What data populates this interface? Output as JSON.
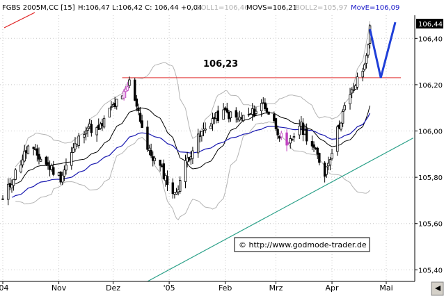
{
  "header": {
    "symbol": "FGBS 2005M,CC [15]",
    "ohlc": "H:106,47 L:106,42 C: 106,44 +0,04",
    "boll1": "BOLL1=106,46",
    "movs": "MOVS=106,21",
    "boll2": "BOLL2=105,97",
    "move": "MovE=106,09"
  },
  "colors": {
    "background": "#ffffff",
    "candle": "#000000",
    "bollinger": "#b4b4b4",
    "simple_ma": "#000000",
    "exp_ma": "#1818b0",
    "resistance": "#e03030",
    "trendline": "#2aa088",
    "forecast": "#1f3fd8",
    "marker_candle": "#c040c0"
  },
  "annotations": {
    "resistance_label": "106,23",
    "copyright": "© http://www.godmode-trader.de",
    "last_price_box": "106,44"
  },
  "chart_data": {
    "type": "candlestick",
    "title": "",
    "xlabel": "",
    "ylabel": "",
    "ylim": [
      105.35,
      106.5
    ],
    "grid": true,
    "y_ticks": [
      "106,40",
      "106,20",
      "106,00",
      "105,80",
      "105,60",
      "105,40"
    ],
    "y_tick_values": [
      106.4,
      106.2,
      106.0,
      105.8,
      105.6,
      105.4
    ],
    "x_ticks": [
      "'04",
      "Nov",
      "Dez",
      "'05",
      "Feb",
      "Mrz",
      "Apr",
      "Mai"
    ],
    "x_tick_dates": [
      "2004-10-01",
      "2004-11-01",
      "2004-12-01",
      "2005-01-01",
      "2005-02-01",
      "2005-03-01",
      "2005-04-01",
      "2005-05-01"
    ],
    "date_range": [
      "2004-10-01",
      "2005-05-16"
    ],
    "close_anchors": [
      [
        "2004-10-01",
        105.7
      ],
      [
        "2004-10-08",
        105.82
      ],
      [
        "2004-10-15",
        105.93
      ],
      [
        "2004-10-22",
        105.88
      ],
      [
        "2004-11-02",
        105.8
      ],
      [
        "2004-11-09",
        105.92
      ],
      [
        "2004-11-16",
        106.02
      ],
      [
        "2004-11-23",
        106.0
      ],
      [
        "2004-11-30",
        106.1
      ],
      [
        "2004-12-06",
        106.14
      ],
      [
        "2004-12-10",
        106.21
      ],
      [
        "2004-12-14",
        106.12
      ],
      [
        "2004-12-20",
        105.92
      ],
      [
        "2004-12-28",
        105.83
      ],
      [
        "2005-01-04",
        105.72
      ],
      [
        "2005-01-11",
        105.88
      ],
      [
        "2005-01-18",
        105.98
      ],
      [
        "2005-01-25",
        106.05
      ],
      [
        "2005-02-01",
        106.08
      ],
      [
        "2005-02-08",
        106.05
      ],
      [
        "2005-02-15",
        106.07
      ],
      [
        "2005-02-22",
        106.12
      ],
      [
        "2005-03-01",
        106.02
      ],
      [
        "2005-03-07",
        105.92
      ],
      [
        "2005-03-14",
        106.03
      ],
      [
        "2005-03-21",
        105.94
      ],
      [
        "2005-03-28",
        105.82
      ],
      [
        "2005-04-01",
        105.92
      ],
      [
        "2005-04-07",
        106.08
      ],
      [
        "2005-04-14",
        106.2
      ],
      [
        "2005-04-19",
        106.28
      ],
      [
        "2005-04-22",
        106.44
      ]
    ],
    "resistance": {
      "value": 106.23,
      "from": "2004-12-06",
      "to": "2005-05-16"
    },
    "trendline": [
      [
        "2004-12-20",
        105.35
      ],
      [
        "2005-05-16",
        105.97
      ]
    ],
    "forecast": [
      [
        "2005-04-22",
        106.44
      ],
      [
        "2005-04-28",
        106.23
      ],
      [
        "2005-05-06",
        106.47
      ]
    ],
    "series": [
      {
        "name": "BOLL1",
        "last": 106.46
      },
      {
        "name": "MOVS",
        "last": 106.21
      },
      {
        "name": "BOLL2",
        "last": 105.97
      },
      {
        "name": "MovE",
        "last": 106.09
      }
    ]
  }
}
